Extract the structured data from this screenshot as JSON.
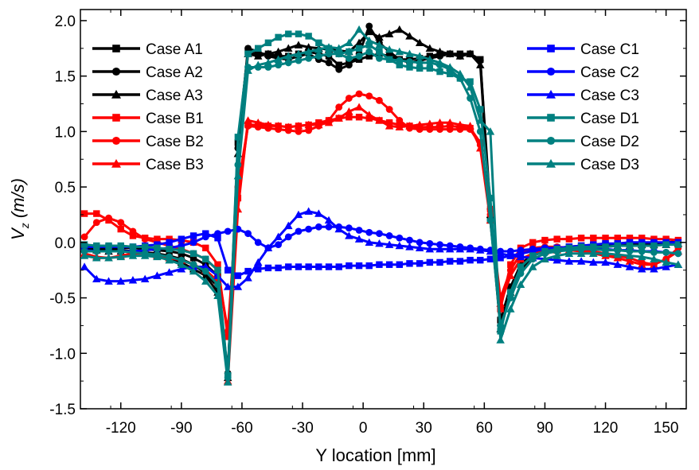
{
  "chart_data": {
    "type": "line",
    "xlabel": "Y location [mm]",
    "ylabel": "V_z (m/s)",
    "ylabel_main": "V",
    "ylabel_sub": "z",
    "ylabel_unit": " (m/s)",
    "xlim": [
      -140,
      160
    ],
    "ylim": [
      -1.5,
      2.1
    ],
    "x_ticks": [
      -120,
      -90,
      -60,
      -30,
      0,
      30,
      60,
      90,
      120,
      150
    ],
    "y_ticks": [
      -1.5,
      -1.0,
      -0.5,
      0.0,
      0.5,
      1.0,
      1.5,
      2.0
    ],
    "x_tick_labels": [
      "-120",
      "-90",
      "-60",
      "-30",
      "0",
      "30",
      "60",
      "90",
      "120",
      "150"
    ],
    "y_tick_labels": [
      "-1.5",
      "-1.0",
      "-0.5",
      "0.0",
      "0.5",
      "1.0",
      "1.5",
      "2.0"
    ],
    "grid": false,
    "legend_left": [
      "Case A1",
      "Case A2",
      "Case A3",
      "Case B1",
      "Case B2",
      "Case B3"
    ],
    "legend_right": [
      "Case C1",
      "Case C2",
      "Case C3",
      "Case D1",
      "Case D2",
      "Case D3"
    ],
    "x": [
      -138,
      -132,
      -126,
      -120,
      -114,
      -108,
      -102,
      -96,
      -90,
      -84,
      -78,
      -72,
      -67,
      -62,
      -57,
      -52,
      -47,
      -42,
      -37,
      -32,
      -27,
      -22,
      -17,
      -12,
      -7,
      -2,
      3,
      8,
      13,
      18,
      23,
      28,
      33,
      38,
      43,
      48,
      53,
      58,
      63,
      68,
      73,
      78,
      84,
      90,
      96,
      102,
      108,
      114,
      120,
      126,
      132,
      138,
      144,
      150,
      156
    ],
    "series": [
      {
        "name": "Case A1",
        "color": "#000000",
        "marker": "square",
        "values": [
          -0.04,
          -0.05,
          -0.06,
          -0.05,
          -0.05,
          -0.06,
          -0.07,
          -0.08,
          -0.1,
          -0.14,
          -0.2,
          -0.3,
          -1.2,
          0.9,
          1.72,
          1.7,
          1.7,
          1.68,
          1.68,
          1.7,
          1.72,
          1.7,
          1.68,
          1.6,
          1.62,
          1.65,
          1.68,
          1.7,
          1.68,
          1.65,
          1.65,
          1.66,
          1.68,
          1.7,
          1.7,
          1.7,
          1.7,
          1.65,
          0.2,
          -0.7,
          -0.4,
          -0.2,
          -0.1,
          -0.06,
          -0.05,
          -0.04,
          -0.03,
          -0.03,
          -0.02,
          -0.02,
          -0.02,
          -0.01,
          -0.01,
          0.0,
          0.01
        ]
      },
      {
        "name": "Case A2",
        "color": "#000000",
        "marker": "circle",
        "values": [
          -0.05,
          -0.06,
          -0.07,
          -0.07,
          -0.08,
          -0.09,
          -0.1,
          -0.12,
          -0.15,
          -0.2,
          -0.28,
          -0.4,
          -1.18,
          0.85,
          1.75,
          1.72,
          1.68,
          1.66,
          1.65,
          1.68,
          1.7,
          1.65,
          1.62,
          1.56,
          1.6,
          1.7,
          1.95,
          1.8,
          1.72,
          1.65,
          1.62,
          1.64,
          1.66,
          1.68,
          1.7,
          1.68,
          1.7,
          1.64,
          0.3,
          -0.75,
          -0.45,
          -0.25,
          -0.12,
          -0.07,
          -0.06,
          -0.05,
          -0.04,
          -0.04,
          -0.03,
          -0.03,
          -0.02,
          -0.02,
          -0.02,
          -0.01,
          0.0
        ]
      },
      {
        "name": "Case A3",
        "color": "#000000",
        "marker": "triangle",
        "values": [
          -0.06,
          -0.07,
          -0.08,
          -0.08,
          -0.09,
          -0.1,
          -0.11,
          -0.14,
          -0.18,
          -0.24,
          -0.3,
          -0.45,
          -1.22,
          0.8,
          1.7,
          1.68,
          1.7,
          1.72,
          1.75,
          1.78,
          1.76,
          1.75,
          1.74,
          1.73,
          1.72,
          1.8,
          1.9,
          1.85,
          1.88,
          1.92,
          1.86,
          1.8,
          1.75,
          1.72,
          1.7,
          1.68,
          1.7,
          1.6,
          0.25,
          -0.78,
          -0.45,
          -0.22,
          -0.12,
          -0.08,
          -0.06,
          -0.05,
          -0.05,
          -0.04,
          -0.04,
          -0.03,
          -0.03,
          -0.02,
          -0.02,
          -0.02,
          -0.01
        ]
      },
      {
        "name": "Case B1",
        "color": "#ff0000",
        "marker": "square",
        "values": [
          0.26,
          0.26,
          0.2,
          0.12,
          0.06,
          0.04,
          0.03,
          0.03,
          0.02,
          0.0,
          -0.05,
          -0.2,
          -0.85,
          0.4,
          1.06,
          1.06,
          1.05,
          1.05,
          1.04,
          1.05,
          1.06,
          1.08,
          1.1,
          1.12,
          1.13,
          1.13,
          1.12,
          1.1,
          1.08,
          1.06,
          1.05,
          1.04,
          1.04,
          1.04,
          1.05,
          1.04,
          1.03,
          0.9,
          0.3,
          -0.6,
          -0.2,
          -0.05,
          0.0,
          0.02,
          0.03,
          0.03,
          0.04,
          0.04,
          0.04,
          0.04,
          0.04,
          0.04,
          0.03,
          0.03,
          0.02
        ]
      },
      {
        "name": "Case B2",
        "color": "#ff0000",
        "marker": "circle",
        "values": [
          0.05,
          0.18,
          0.22,
          0.18,
          0.1,
          0.03,
          0.0,
          -0.03,
          -0.06,
          -0.1,
          -0.15,
          -0.25,
          -0.8,
          0.5,
          1.05,
          1.04,
          1.03,
          1.02,
          1.01,
          1.0,
          1.01,
          1.05,
          1.1,
          1.22,
          1.3,
          1.34,
          1.32,
          1.28,
          1.2,
          1.1,
          1.03,
          1.02,
          1.02,
          1.02,
          1.02,
          1.02,
          1.02,
          0.88,
          0.25,
          -0.5,
          -0.25,
          -0.1,
          -0.05,
          -0.04,
          -0.04,
          -0.05,
          -0.06,
          -0.08,
          -0.1,
          -0.12,
          -0.14,
          -0.18,
          -0.2,
          -0.15,
          -0.05
        ]
      },
      {
        "name": "Case B3",
        "color": "#ff0000",
        "marker": "triangle",
        "values": [
          -0.1,
          -0.13,
          -0.14,
          -0.12,
          -0.1,
          -0.1,
          -0.12,
          -0.14,
          -0.16,
          -0.2,
          -0.25,
          -0.35,
          -1.25,
          0.3,
          1.1,
          1.08,
          1.06,
          1.05,
          1.04,
          1.05,
          1.06,
          1.06,
          1.08,
          1.12,
          1.18,
          1.22,
          1.15,
          1.1,
          1.05,
          1.04,
          1.05,
          1.06,
          1.07,
          1.08,
          1.08,
          1.06,
          1.05,
          0.85,
          0.2,
          -0.55,
          -0.3,
          -0.15,
          -0.1,
          -0.08,
          -0.07,
          -0.07,
          -0.08,
          -0.1,
          -0.12,
          -0.14,
          -0.17,
          -0.2,
          -0.2,
          -0.15,
          -0.08
        ]
      },
      {
        "name": "Case C1",
        "color": "#0000ff",
        "marker": "square",
        "values": [
          -0.04,
          -0.04,
          -0.04,
          -0.04,
          -0.04,
          -0.03,
          -0.02,
          0.0,
          0.03,
          0.06,
          0.08,
          0.04,
          -0.25,
          -0.3,
          -0.26,
          -0.24,
          -0.23,
          -0.23,
          -0.22,
          -0.22,
          -0.22,
          -0.22,
          -0.22,
          -0.22,
          -0.21,
          -0.21,
          -0.21,
          -0.2,
          -0.2,
          -0.2,
          -0.19,
          -0.19,
          -0.18,
          -0.18,
          -0.17,
          -0.17,
          -0.16,
          -0.16,
          -0.15,
          -0.14,
          -0.12,
          -0.1,
          -0.08,
          -0.06,
          -0.05,
          -0.04,
          -0.03,
          -0.02,
          -0.01,
          -0.01,
          0.0,
          0.0,
          0.0,
          0.0,
          0.0
        ]
      },
      {
        "name": "Case C2",
        "color": "#0000ff",
        "marker": "circle",
        "values": [
          -0.07,
          -0.08,
          -0.08,
          -0.08,
          -0.08,
          -0.07,
          -0.06,
          -0.05,
          -0.03,
          0.0,
          0.05,
          0.08,
          0.1,
          0.12,
          0.08,
          0.0,
          -0.05,
          -0.02,
          0.05,
          0.1,
          0.12,
          0.14,
          0.14,
          0.14,
          0.13,
          0.11,
          0.09,
          0.08,
          0.06,
          0.04,
          0.02,
          0.0,
          -0.01,
          -0.02,
          -0.03,
          -0.04,
          -0.05,
          -0.06,
          -0.07,
          -0.08,
          -0.08,
          -0.07,
          -0.06,
          -0.05,
          -0.05,
          -0.05,
          -0.06,
          -0.06,
          -0.06,
          -0.07,
          -0.07,
          -0.08,
          -0.08,
          -0.09,
          -0.1
        ]
      },
      {
        "name": "Case C3",
        "color": "#0000ff",
        "marker": "triangle",
        "values": [
          -0.22,
          -0.33,
          -0.35,
          -0.35,
          -0.34,
          -0.33,
          -0.3,
          -0.27,
          -0.24,
          -0.22,
          -0.22,
          -0.3,
          -0.4,
          -0.4,
          -0.32,
          -0.18,
          -0.05,
          0.05,
          0.15,
          0.25,
          0.28,
          0.26,
          0.2,
          0.12,
          0.06,
          0.03,
          0.0,
          -0.01,
          -0.02,
          -0.03,
          -0.04,
          -0.05,
          -0.06,
          -0.06,
          -0.06,
          -0.06,
          -0.06,
          -0.07,
          -0.08,
          -0.1,
          -0.12,
          -0.13,
          -0.14,
          -0.15,
          -0.16,
          -0.17,
          -0.17,
          -0.18,
          -0.18,
          -0.2,
          -0.22,
          -0.24,
          -0.24,
          -0.22,
          -0.2
        ]
      },
      {
        "name": "Case D1",
        "color": "#008080",
        "marker": "square",
        "values": [
          -0.02,
          -0.03,
          -0.03,
          -0.03,
          -0.04,
          -0.04,
          -0.05,
          -0.06,
          -0.07,
          -0.1,
          -0.15,
          -0.25,
          -1.2,
          0.95,
          1.7,
          1.75,
          1.8,
          1.85,
          1.88,
          1.88,
          1.86,
          1.8,
          1.75,
          1.7,
          1.72,
          1.75,
          1.78,
          1.72,
          1.65,
          1.6,
          1.58,
          1.57,
          1.57,
          1.54,
          1.52,
          1.48,
          1.45,
          1.2,
          0.4,
          -0.8,
          -0.45,
          -0.22,
          -0.12,
          -0.08,
          -0.06,
          -0.05,
          -0.04,
          -0.04,
          -0.04,
          -0.03,
          -0.03,
          -0.03,
          -0.03,
          -0.02,
          -0.02
        ]
      },
      {
        "name": "Case D2",
        "color": "#008080",
        "marker": "circle",
        "values": [
          -0.08,
          -0.08,
          -0.08,
          -0.08,
          -0.09,
          -0.1,
          -0.11,
          -0.13,
          -0.16,
          -0.2,
          -0.26,
          -0.38,
          -1.22,
          0.7,
          1.58,
          1.58,
          1.58,
          1.6,
          1.62,
          1.64,
          1.66,
          1.68,
          1.7,
          1.7,
          1.66,
          1.68,
          1.72,
          1.66,
          1.65,
          1.64,
          1.63,
          1.62,
          1.62,
          1.6,
          1.56,
          1.48,
          1.3,
          1.0,
          0.2,
          -0.75,
          -0.5,
          -0.28,
          -0.15,
          -0.1,
          -0.08,
          -0.07,
          -0.06,
          -0.06,
          -0.07,
          -0.07,
          -0.08,
          -0.08,
          -0.09,
          -0.09,
          -0.1
        ]
      },
      {
        "name": "Case D3",
        "color": "#008080",
        "marker": "triangle",
        "values": [
          -0.12,
          -0.14,
          -0.14,
          -0.13,
          -0.12,
          -0.12,
          -0.13,
          -0.16,
          -0.2,
          -0.26,
          -0.35,
          -0.48,
          -1.26,
          0.6,
          1.55,
          1.6,
          1.62,
          1.65,
          1.68,
          1.7,
          1.72,
          1.74,
          1.76,
          1.75,
          1.8,
          1.92,
          1.82,
          1.78,
          1.74,
          1.72,
          1.7,
          1.68,
          1.65,
          1.62,
          1.58,
          1.52,
          1.4,
          1.1,
          1.0,
          -0.88,
          -0.6,
          -0.38,
          -0.22,
          -0.15,
          -0.12,
          -0.1,
          -0.1,
          -0.1,
          -0.1,
          -0.11,
          -0.12,
          -0.13,
          -0.15,
          -0.18,
          -0.2
        ]
      }
    ]
  }
}
